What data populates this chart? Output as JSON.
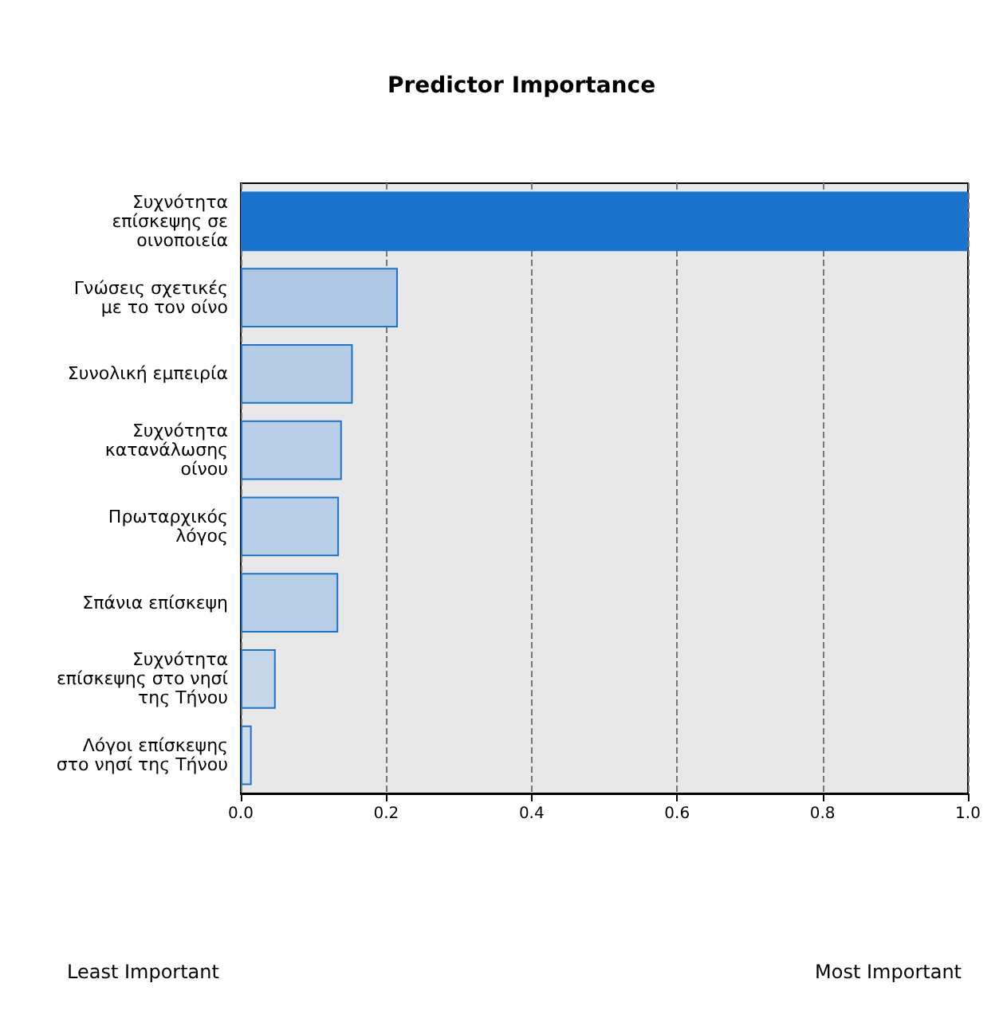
{
  "chart_data": {
    "type": "bar",
    "orientation": "horizontal",
    "title": "Predictor Importance",
    "categories": [
      "Συχνότητα\nεπίσκεψης σε\nοινοποιεία",
      "Γνώσεις σχετικές\nμε το τον οίνο",
      "Συνολική εμπειρία",
      "Συχνότητα\nκατανάλωσης\nοίνου",
      "Πρωταρχικός\nλόγος",
      "Σπάνια επίσκεψη",
      "Συχνότητα\nεπίσκεψης στο νησί\nτης Τήνου",
      "Λόγοι επίσκεψης\nστο νησί της Τήνου"
    ],
    "values": [
      1.0,
      0.216,
      0.154,
      0.139,
      0.135,
      0.134,
      0.048,
      0.015
    ],
    "colors": [
      "#1a73cc",
      "#aec8e4",
      "#b4cce6",
      "#b8cfe7",
      "#b8cfe7",
      "#b9cfe7",
      "#c6d7ea",
      "#ccdcec"
    ],
    "xlim": [
      0,
      1
    ],
    "xticks": [
      {
        "value": 0,
        "label": "0.0"
      },
      {
        "value": 0.2,
        "label": "0.2"
      },
      {
        "value": 0.4,
        "label": "0.4"
      },
      {
        "value": 0.6,
        "label": "0.6"
      },
      {
        "value": 0.8,
        "label": "0.8"
      },
      {
        "value": 1,
        "label": "1.0"
      }
    ],
    "grid": "x",
    "annotations": [
      "Least Important",
      "Most Important"
    ]
  }
}
